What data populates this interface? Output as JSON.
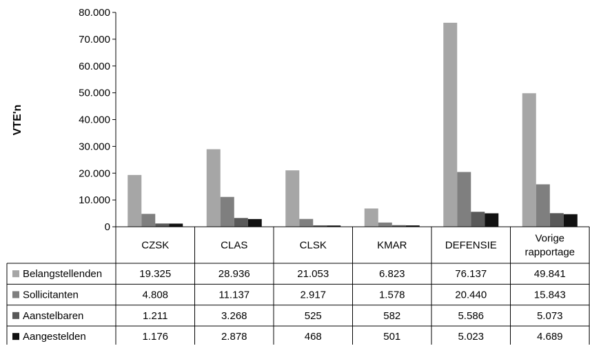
{
  "chart_data": {
    "type": "bar",
    "ylabel": "VTE'n",
    "ylim": [
      0,
      80000
    ],
    "yticks": [
      "0",
      "10.000",
      "20.000",
      "30.000",
      "40.000",
      "50.000",
      "60.000",
      "70.000",
      "80.000"
    ],
    "categories": [
      "CZSK",
      "CLAS",
      "CLSK",
      "KMAR",
      "DEFENSIE",
      "Vorige rapportage"
    ],
    "category_lines": [
      [
        "CZSK"
      ],
      [
        "CLAS"
      ],
      [
        "CLSK"
      ],
      [
        "KMAR"
      ],
      [
        "DEFENSIE"
      ],
      [
        "Vorige",
        "rapportage"
      ]
    ],
    "legend_position": "data-table",
    "grid": false,
    "series": [
      {
        "name": "Belangstellenden",
        "color": "#a6a6a6",
        "values": [
          19325,
          28936,
          21053,
          6823,
          76137,
          49841
        ],
        "labels": [
          "19.325",
          "28.936",
          "21.053",
          "6.823",
          "76.137",
          "49.841"
        ]
      },
      {
        "name": "Sollicitanten",
        "color": "#7f7f7f",
        "values": [
          4808,
          11137,
          2917,
          1578,
          20440,
          15843
        ],
        "labels": [
          "4.808",
          "11.137",
          "2.917",
          "1.578",
          "20.440",
          "15.843"
        ]
      },
      {
        "name": "Aanstelbaren",
        "color": "#595959",
        "values": [
          1211,
          3268,
          525,
          582,
          5586,
          5073
        ],
        "labels": [
          "1.211",
          "3.268",
          "525",
          "582",
          "5.586",
          "5.073"
        ]
      },
      {
        "name": "Aangestelden",
        "color": "#111111",
        "values": [
          1176,
          2878,
          468,
          501,
          5023,
          4689
        ],
        "labels": [
          "1.176",
          "2.878",
          "468",
          "501",
          "5.023",
          "4.689"
        ]
      }
    ]
  }
}
